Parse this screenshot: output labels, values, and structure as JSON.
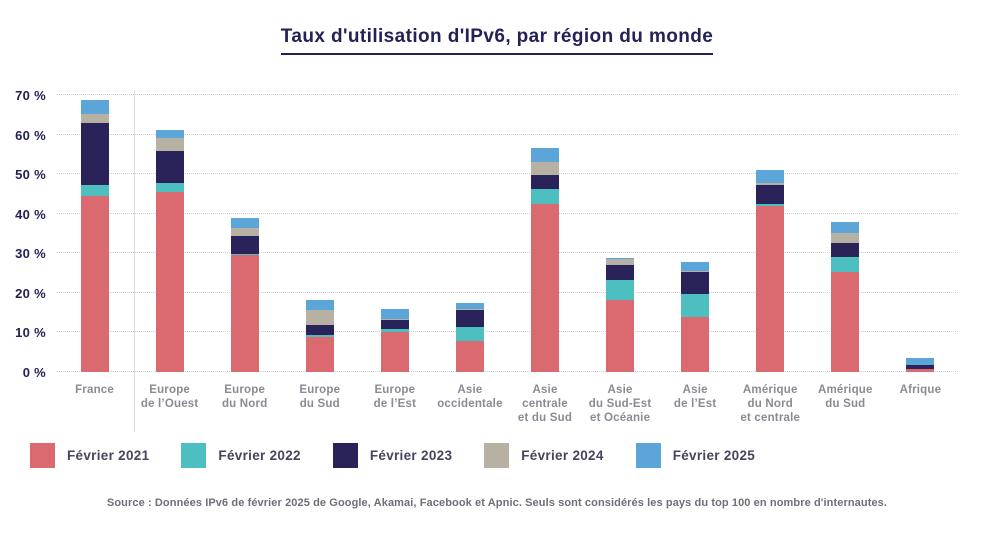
{
  "title": "Taux d'utilisation d'IPv6, par région du monde",
  "source_note": "Source : Données IPv6 de février 2025 de Google, Akamai, Facebook et Apnic. Seuls sont considérés les pays du top 100 en nombre d'internautes.",
  "colors": {
    "title_text": "#232256",
    "axis_label_text": "#232256",
    "category_label_text": "#8b8a94",
    "legend_label_text": "#45455c",
    "source_text": "#6f6e79",
    "gridline": "#cfcfd6",
    "separator_line": "#dcdce0",
    "background": "#ffffff"
  },
  "chart_data": {
    "type": "bar",
    "stacked": true,
    "unit": "%",
    "title": "Taux d'utilisation d'IPv6, par région du monde",
    "xlabel": "",
    "ylabel": "",
    "ylim": [
      0,
      70
    ],
    "ytick_step": 10,
    "ytick_labels": [
      "0 %",
      "10 %",
      "20 %",
      "30 %",
      "40 %",
      "50 %",
      "60 %",
      "70 %"
    ],
    "grid": "horizontal-dotted",
    "legend_position": "bottom",
    "separator_after_category": "France",
    "categories": [
      "France",
      "Europe\nde l’Ouest",
      "Europe\ndu Nord",
      "Europe\ndu Sud",
      "Europe\nde l’Est",
      "Asie\noccidentale",
      "Asie\ncentrale\net du Sud",
      "Asie\ndu Sud-Est\net Océanie",
      "Asie\nde l’Est",
      "Amérique\ndu Nord\net centrale",
      "Amérique\ndu Sud",
      "Afrique"
    ],
    "series": [
      {
        "name": "Février 2021",
        "color": "#db6a70",
        "values": [
          44.6,
          45.6,
          29.5,
          8.8,
          10.1,
          7.9,
          42.4,
          18.1,
          13.9,
          42.0,
          25.2,
          0.7
        ]
      },
      {
        "name": "Février 2022",
        "color": "#4dbfc1",
        "values": [
          2.7,
          2.2,
          0.4,
          0.5,
          0.7,
          3.4,
          3.8,
          5.1,
          5.7,
          0.4,
          3.8,
          0.1
        ]
      },
      {
        "name": "Février 2023",
        "color": "#29235a",
        "values": [
          15.7,
          8.1,
          4.6,
          2.5,
          2.3,
          4.4,
          3.5,
          3.8,
          5.6,
          4.9,
          3.7,
          1.0
        ]
      },
      {
        "name": "Février 2024",
        "color": "#b7b1a4",
        "values": [
          2.2,
          3.3,
          2.0,
          3.8,
          0.3,
          0.2,
          3.4,
          1.5,
          0.3,
          0.6,
          2.5,
          0.1
        ]
      },
      {
        "name": "Février 2025",
        "color": "#5ca5d9",
        "values": [
          3.5,
          2.0,
          2.5,
          2.5,
          2.5,
          1.6,
          3.6,
          0.2,
          2.2,
          3.2,
          2.8,
          1.6
        ]
      }
    ],
    "stacked_totals": [
      68.7,
      61.2,
      39.0,
      18.1,
      15.9,
      17.5,
      56.7,
      28.7,
      27.7,
      51.1,
      38.0,
      3.5
    ]
  }
}
